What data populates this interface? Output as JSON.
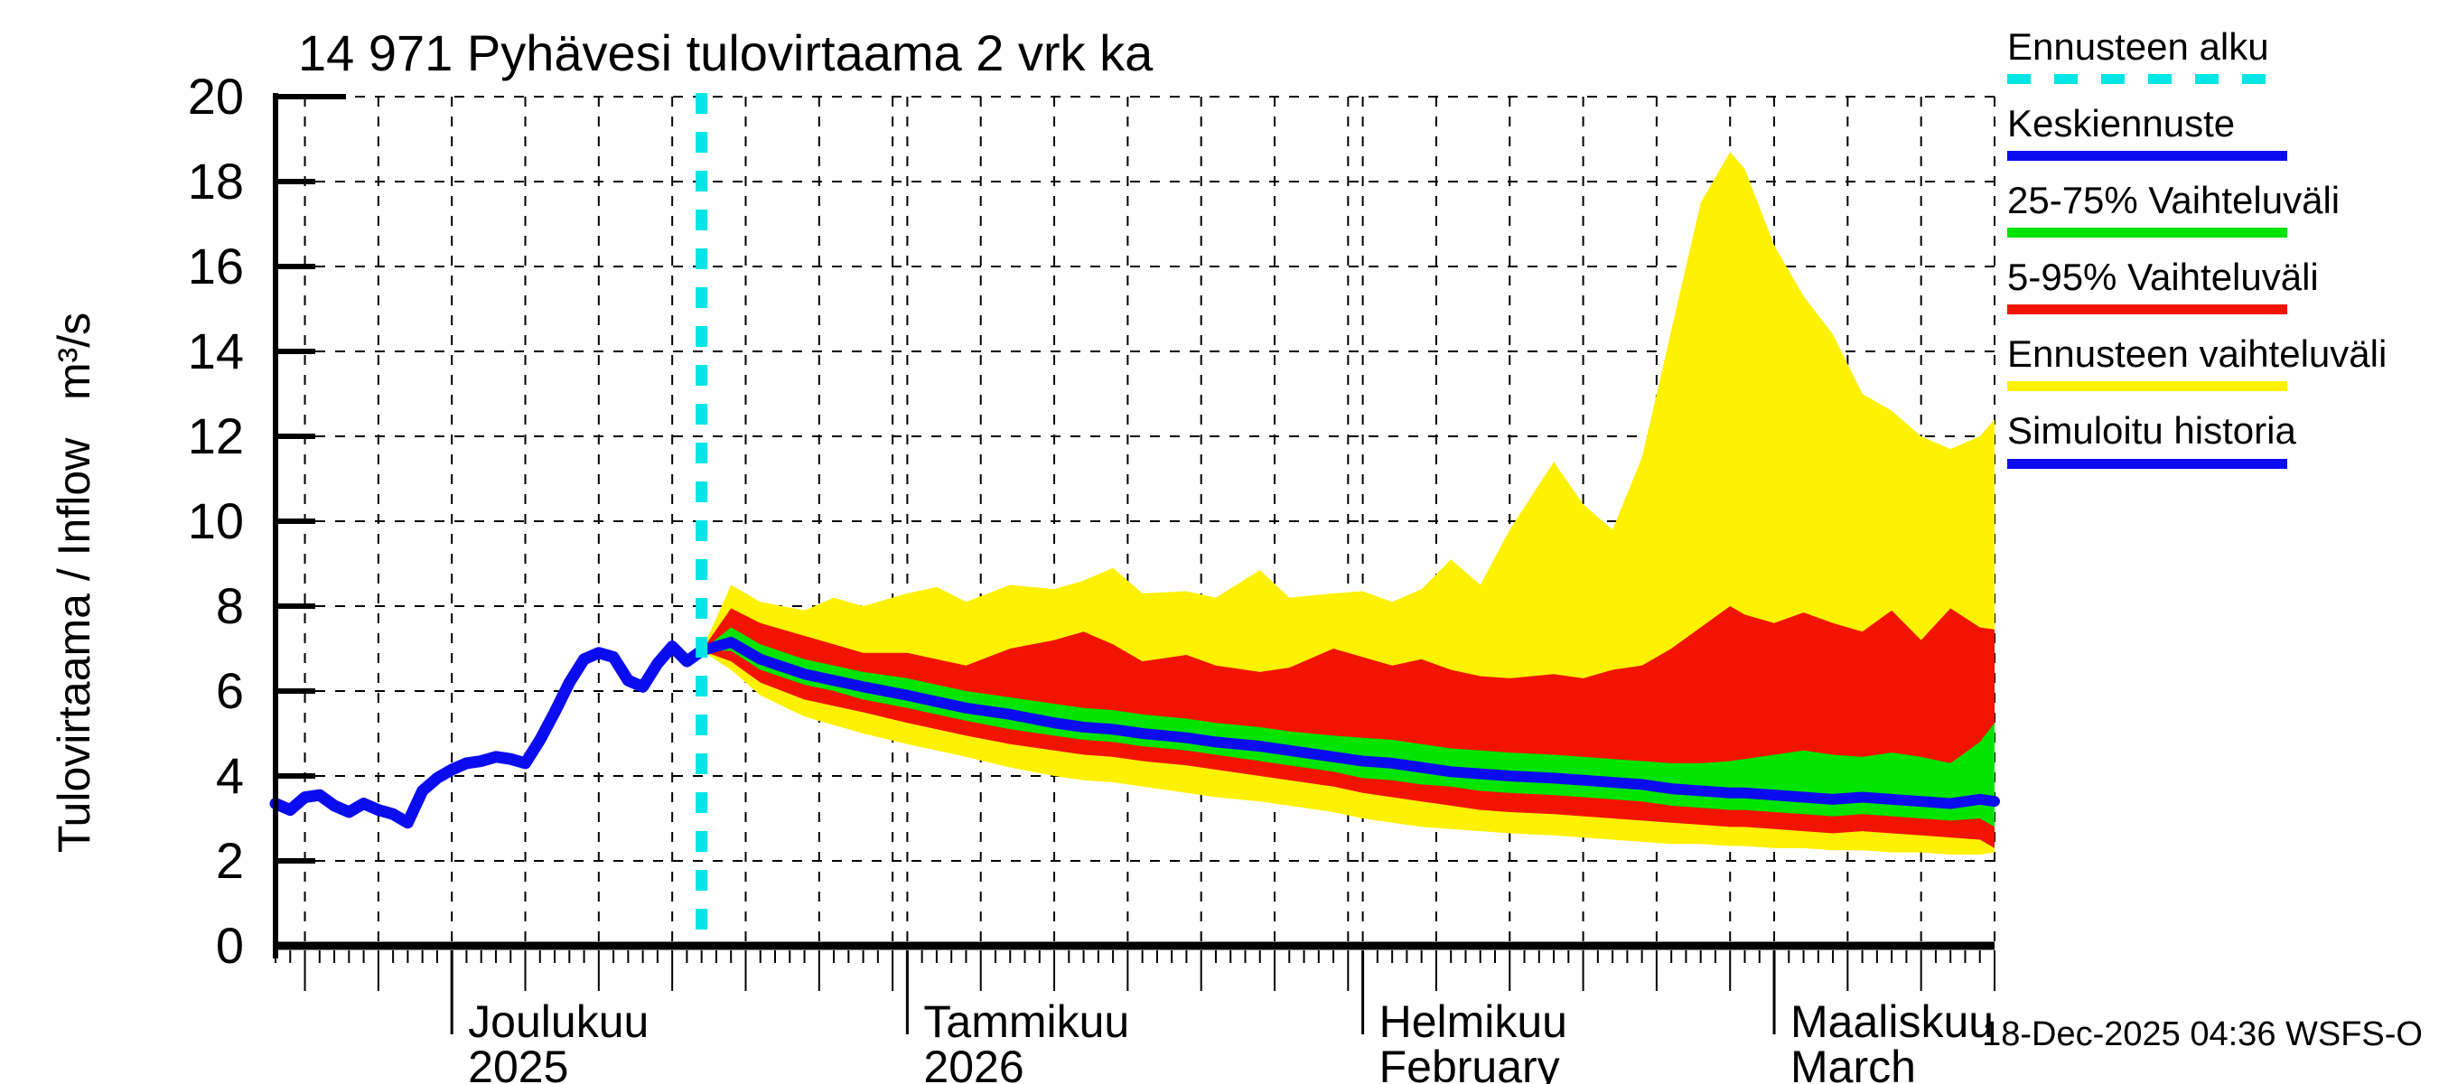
{
  "title": "14 971 Pyhävesi tulovirtaama 2 vrk ka",
  "timestamp": "18-Dec-2025 04:36 WSFS-O",
  "y_axis": {
    "label": "Tulovirtaama / Inflow   m³/s",
    "ticks": [
      0,
      2,
      4,
      6,
      8,
      10,
      12,
      14,
      16,
      18,
      20
    ]
  },
  "x_axis": {
    "months": [
      {
        "day": 12,
        "line1": "Joulukuu",
        "line2": "2025"
      },
      {
        "day": 43,
        "line1": "Tammikuu",
        "line2": "2026"
      },
      {
        "day": 74,
        "line1": "Helmikuu",
        "line2": "February"
      },
      {
        "day": 102,
        "line1": "Maaliskuu",
        "line2": "March"
      }
    ]
  },
  "colors": {
    "cyan": "#00E5E5",
    "blue": "#0b0bf0",
    "green": "#00E400",
    "red": "#F21400",
    "yellow": "#FFF200",
    "grid": "#000000"
  },
  "legend": {
    "items": [
      {
        "label": "Ennusteen alku",
        "color": "#00E5E5",
        "style": "dashed"
      },
      {
        "label": "Keskiennuste",
        "color": "#0b0bf0",
        "style": "solid"
      },
      {
        "label": "25-75% Vaihteluväli",
        "color": "#00E400",
        "style": "solid"
      },
      {
        "label": "5-95% Vaihteluväli",
        "color": "#F21400",
        "style": "solid"
      },
      {
        "label": "Ennusteen vaihteluväli",
        "color": "#FFF200",
        "style": "solid"
      },
      {
        "label": "Simuloitu historia",
        "color": "#0b0bf0",
        "style": "solid"
      }
    ]
  },
  "chart_data": {
    "type": "line+area",
    "title": "14 971 Pyhävesi tulovirtaama 2 vrk ka",
    "ylabel": "Tulovirtaama / Inflow m³/s",
    "ylim": [
      0,
      20
    ],
    "grid": true,
    "legend_position": "outside-right",
    "x_unit": "days, day 0 = 19-Nov-2025",
    "axis_day_range": [
      0,
      117
    ],
    "forecast_start_day": 29,
    "forecast_start_label": "18-Dec-2025",
    "ytick_values": [
      0,
      2,
      4,
      6,
      8,
      10,
      12,
      14,
      16,
      18,
      20
    ],
    "vertical_gridline_days": [
      2,
      7,
      12,
      17,
      22,
      27,
      32,
      37,
      42,
      43,
      48,
      53,
      58,
      63,
      68,
      73,
      74,
      79,
      84,
      89,
      94,
      99,
      102,
      107,
      112,
      117
    ],
    "month_start_days": [
      12,
      43,
      74,
      102
    ],
    "history": {
      "name": "Simuloitu historia",
      "days": [
        0,
        1,
        2,
        3,
        4,
        5,
        6,
        7,
        8,
        9,
        10,
        11,
        12,
        13,
        14,
        15,
        16,
        17,
        18,
        19,
        20,
        21,
        22,
        23,
        24,
        25,
        26,
        27,
        28,
        29
      ],
      "values": [
        3.35,
        3.2,
        3.5,
        3.55,
        3.3,
        3.15,
        3.35,
        3.2,
        3.1,
        2.9,
        3.65,
        3.95,
        4.15,
        4.3,
        4.35,
        4.45,
        4.4,
        4.3,
        4.85,
        5.5,
        6.2,
        6.75,
        6.9,
        6.8,
        6.25,
        6.1,
        6.65,
        7.05,
        6.7,
        6.95
      ]
    },
    "forecast_days": [
      29,
      31,
      33,
      36,
      38,
      40,
      43,
      45,
      47,
      50,
      53,
      55,
      57,
      59,
      62,
      64,
      67,
      69,
      72,
      74,
      76,
      78,
      80,
      82,
      84,
      87,
      89,
      91,
      93,
      95,
      97,
      99,
      100,
      102,
      104,
      106,
      108,
      110,
      112,
      114,
      116,
      117
    ],
    "median": {
      "name": "Keskiennuste",
      "values": [
        6.95,
        7.15,
        6.75,
        6.4,
        6.25,
        6.1,
        5.9,
        5.75,
        5.6,
        5.45,
        5.25,
        5.15,
        5.1,
        5.0,
        4.9,
        4.8,
        4.7,
        4.6,
        4.45,
        4.35,
        4.3,
        4.2,
        4.1,
        4.05,
        4.0,
        3.95,
        3.9,
        3.85,
        3.8,
        3.7,
        3.65,
        3.6,
        3.6,
        3.55,
        3.5,
        3.45,
        3.5,
        3.45,
        3.4,
        3.35,
        3.45,
        3.4
      ]
    },
    "band_25_75": {
      "name": "25-75% Vaihteluväli",
      "lo": [
        6.95,
        6.95,
        6.5,
        6.15,
        6.0,
        5.8,
        5.6,
        5.45,
        5.3,
        5.1,
        4.95,
        4.85,
        4.8,
        4.7,
        4.6,
        4.5,
        4.35,
        4.25,
        4.1,
        3.95,
        3.9,
        3.8,
        3.75,
        3.65,
        3.6,
        3.55,
        3.5,
        3.45,
        3.4,
        3.3,
        3.25,
        3.2,
        3.2,
        3.15,
        3.1,
        3.05,
        3.1,
        3.05,
        3.0,
        2.95,
        3.0,
        2.8
      ],
      "hi": [
        6.95,
        7.5,
        7.1,
        6.75,
        6.6,
        6.45,
        6.3,
        6.15,
        6.0,
        5.85,
        5.7,
        5.6,
        5.55,
        5.45,
        5.35,
        5.25,
        5.15,
        5.05,
        4.95,
        4.9,
        4.85,
        4.75,
        4.65,
        4.6,
        4.55,
        4.5,
        4.45,
        4.4,
        4.35,
        4.3,
        4.3,
        4.35,
        4.4,
        4.5,
        4.6,
        4.5,
        4.45,
        4.55,
        4.45,
        4.3,
        4.8,
        5.25
      ]
    },
    "band_5_95": {
      "name": "5-95% Vaihteluväli",
      "lo": [
        6.95,
        6.7,
        6.2,
        5.8,
        5.65,
        5.5,
        5.25,
        5.1,
        4.95,
        4.75,
        4.6,
        4.5,
        4.45,
        4.35,
        4.25,
        4.15,
        4.0,
        3.9,
        3.75,
        3.6,
        3.5,
        3.4,
        3.3,
        3.2,
        3.15,
        3.1,
        3.05,
        3.0,
        2.95,
        2.9,
        2.85,
        2.8,
        2.8,
        2.75,
        2.7,
        2.65,
        2.7,
        2.65,
        2.6,
        2.55,
        2.5,
        2.3
      ],
      "hi": [
        6.95,
        7.95,
        7.6,
        7.3,
        7.1,
        6.9,
        6.9,
        6.75,
        6.6,
        7.0,
        7.2,
        7.4,
        7.1,
        6.7,
        6.85,
        6.6,
        6.45,
        6.55,
        7.0,
        6.8,
        6.6,
        6.75,
        6.5,
        6.35,
        6.3,
        6.4,
        6.3,
        6.5,
        6.6,
        7.0,
        7.5,
        8.0,
        7.8,
        7.6,
        7.85,
        7.6,
        7.4,
        7.9,
        7.2,
        7.95,
        7.5,
        7.45
      ]
    },
    "band_minmax": {
      "name": "Ennusteen vaihteluväli",
      "lo": [
        6.95,
        6.5,
        5.9,
        5.4,
        5.2,
        5.0,
        4.75,
        4.6,
        4.45,
        4.2,
        4.0,
        3.9,
        3.85,
        3.75,
        3.6,
        3.5,
        3.4,
        3.3,
        3.15,
        3.0,
        2.9,
        2.8,
        2.75,
        2.7,
        2.65,
        2.6,
        2.55,
        2.5,
        2.45,
        2.4,
        2.4,
        2.35,
        2.35,
        2.3,
        2.3,
        2.25,
        2.25,
        2.2,
        2.2,
        2.15,
        2.15,
        2.2
      ],
      "hi": [
        6.95,
        8.5,
        8.1,
        7.9,
        8.2,
        8.0,
        8.3,
        8.45,
        8.1,
        8.5,
        8.4,
        8.6,
        8.9,
        8.3,
        8.35,
        8.2,
        8.85,
        8.2,
        8.3,
        8.35,
        8.1,
        8.4,
        9.1,
        8.5,
        9.8,
        11.4,
        10.4,
        9.8,
        11.5,
        14.5,
        17.5,
        18.7,
        18.3,
        16.5,
        15.3,
        14.4,
        13.0,
        12.6,
        12.0,
        11.7,
        12.0,
        12.4
      ]
    }
  }
}
